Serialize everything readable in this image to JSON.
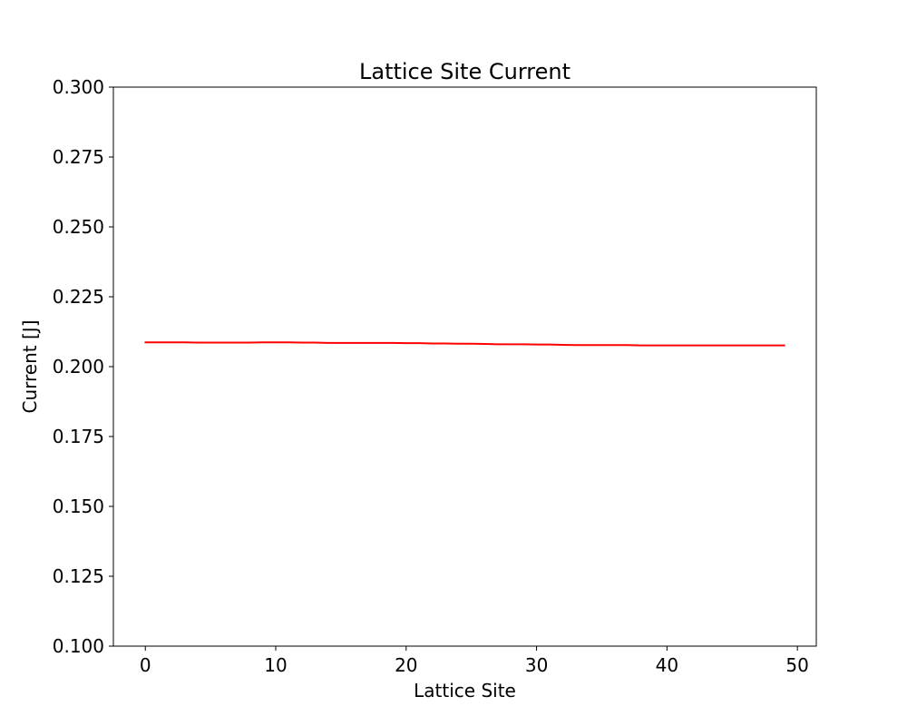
{
  "chart_data": {
    "type": "line",
    "title": "Lattice Site Current",
    "xlabel": "Lattice Site",
    "ylabel": "Current [J]",
    "xlim": [
      -2.45,
      51.45
    ],
    "ylim": [
      0.1,
      0.3
    ],
    "grid": false,
    "x_ticks": [
      0,
      10,
      20,
      30,
      40,
      50
    ],
    "x_tick_labels": [
      "0",
      "10",
      "20",
      "30",
      "40",
      "50"
    ],
    "y_ticks": [
      0.1,
      0.125,
      0.15,
      0.175,
      0.2,
      0.225,
      0.25,
      0.275,
      0.3
    ],
    "y_tick_labels": [
      "0.100",
      "0.125",
      "0.150",
      "0.175",
      "0.200",
      "0.225",
      "0.250",
      "0.275",
      "0.300"
    ],
    "series": [
      {
        "color": "#ff0000",
        "x": [
          0,
          1,
          2,
          3,
          4,
          5,
          6,
          7,
          8,
          9,
          10,
          11,
          12,
          13,
          14,
          15,
          16,
          17,
          18,
          19,
          20,
          21,
          22,
          23,
          24,
          25,
          26,
          27,
          28,
          29,
          30,
          31,
          32,
          33,
          34,
          35,
          36,
          37,
          38,
          39,
          40,
          41,
          42,
          43,
          44,
          45,
          46,
          47,
          48,
          49
        ],
        "values": [
          0.2087,
          0.2087,
          0.2087,
          0.2087,
          0.2086,
          0.2086,
          0.2086,
          0.2086,
          0.2086,
          0.2087,
          0.2087,
          0.2087,
          0.2086,
          0.2086,
          0.2085,
          0.2085,
          0.2085,
          0.2085,
          0.2085,
          0.2085,
          0.2084,
          0.2084,
          0.2083,
          0.2083,
          0.2082,
          0.2082,
          0.2081,
          0.208,
          0.208,
          0.208,
          0.2079,
          0.2079,
          0.2078,
          0.2077,
          0.2077,
          0.2077,
          0.2077,
          0.2077,
          0.2076,
          0.2076,
          0.2076,
          0.2076,
          0.2076,
          0.2076,
          0.2076,
          0.2076,
          0.2076,
          0.2076,
          0.2076,
          0.2076
        ]
      }
    ]
  }
}
